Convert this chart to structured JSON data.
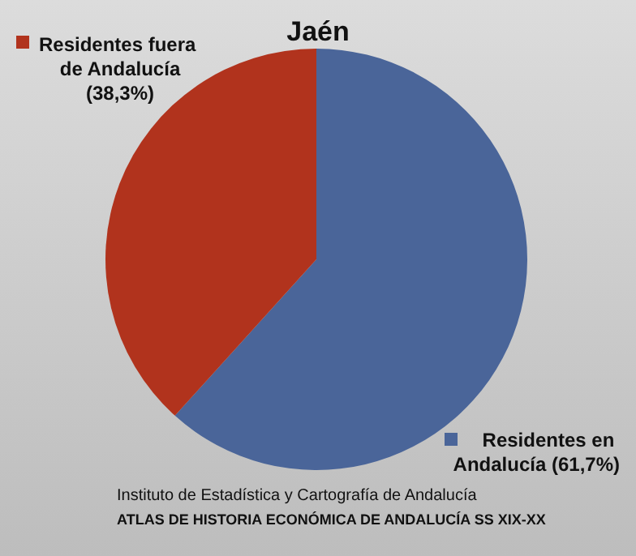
{
  "chart_data": {
    "type": "pie",
    "title": "Jaén",
    "categories": [
      "Residentes en Andalucía",
      "Residentes fuera de Andalucía"
    ],
    "values": [
      61.7,
      38.3
    ],
    "colors": [
      "#4a6599",
      "#b1331d"
    ],
    "value_labels": [
      "(61,7%)",
      "(38,3%)"
    ],
    "legend": "top left",
    "annotations": [
      "Instituto de Estadística y Cartografía de Andalucía",
      "ATLAS DE HISTORIA ECONÓMICA DE ANDALUCÍA SS XIX-XX"
    ]
  }
}
